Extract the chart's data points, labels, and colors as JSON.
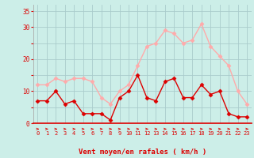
{
  "hours": [
    0,
    1,
    2,
    3,
    4,
    5,
    6,
    7,
    8,
    9,
    10,
    11,
    12,
    13,
    14,
    15,
    16,
    17,
    18,
    19,
    20,
    21,
    22,
    23
  ],
  "rafales": [
    12,
    12,
    14,
    13,
    14,
    14,
    13,
    8,
    6,
    10,
    12,
    18,
    24,
    25,
    29,
    28,
    25,
    26,
    31,
    24,
    21,
    18,
    10,
    6
  ],
  "moyen": [
    7,
    7,
    10,
    6,
    7,
    3,
    3,
    3,
    1,
    8,
    10,
    15,
    8,
    7,
    13,
    14,
    8,
    8,
    12,
    9,
    10,
    3,
    2,
    2
  ],
  "color_rafales": "#ffaaaa",
  "color_moyen": "#dd0000",
  "bg_color": "#cceee8",
  "grid_color": "#aacccc",
  "xlabel": "Vent moyen/en rafales ( km/h )",
  "ylim": [
    0,
    37
  ],
  "yticks": [
    0,
    5,
    10,
    15,
    20,
    25,
    30,
    35
  ],
  "ytick_labels": [
    "0",
    "",
    "10",
    "",
    "20",
    "",
    "30",
    "35"
  ],
  "xtick_labels": [
    "0",
    "1",
    "2",
    "3",
    "4",
    "5",
    "6",
    "7",
    "8",
    "9",
    "10",
    "11",
    "12",
    "13",
    "14",
    "15",
    "16",
    "17",
    "18",
    "19",
    "20",
    "21",
    "22",
    "23"
  ],
  "markersize": 2.5,
  "linewidth": 1.0
}
